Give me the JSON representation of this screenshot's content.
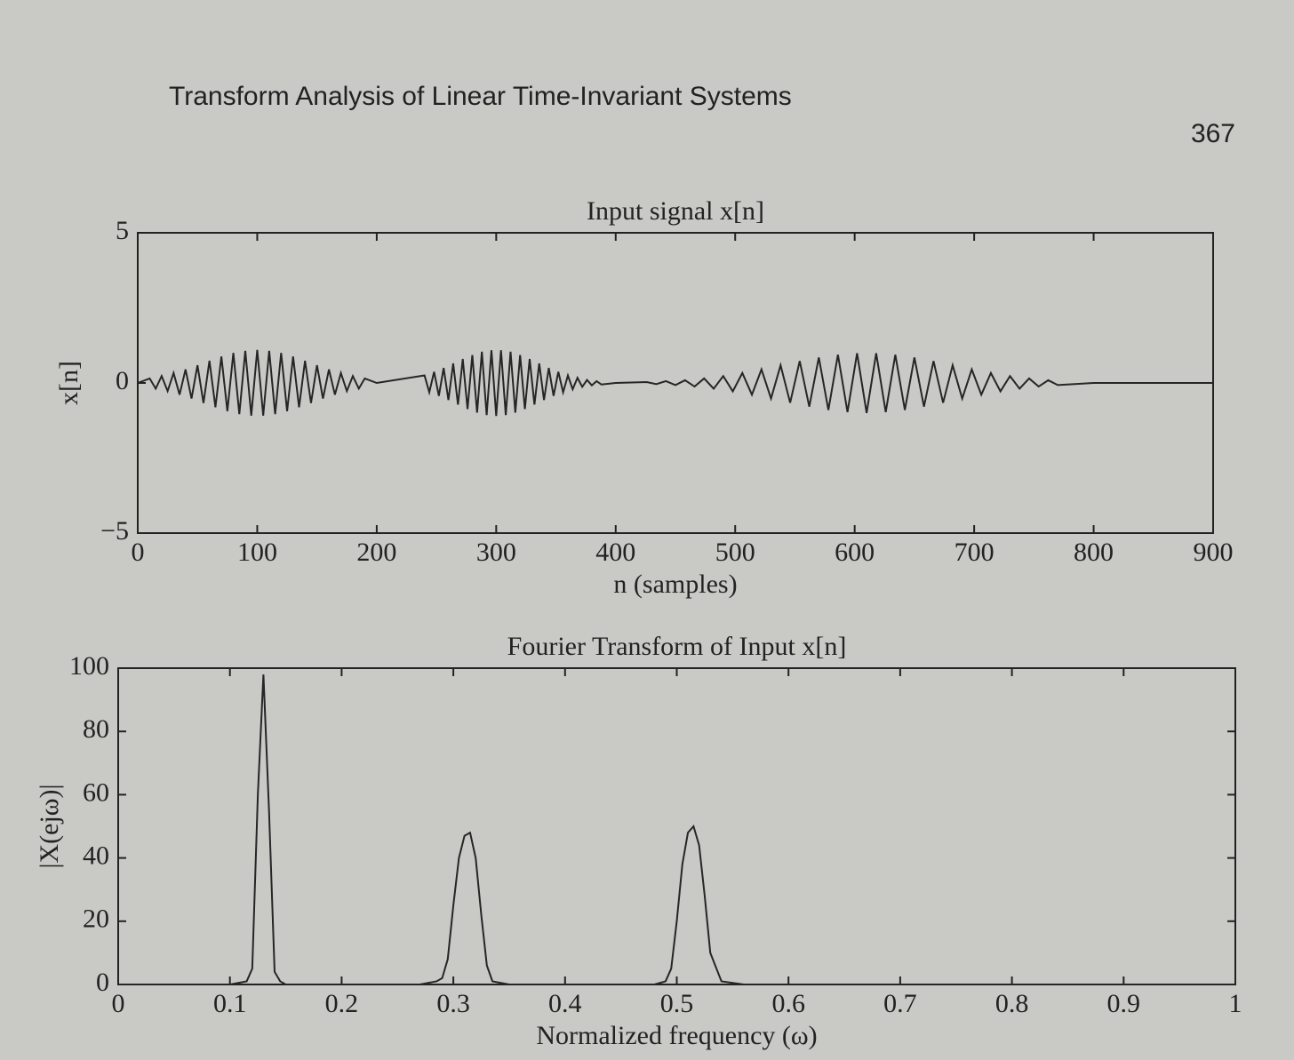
{
  "page": {
    "header": "Transform Analysis of Linear Time-Invariant Systems",
    "number": "367"
  },
  "chart_data": [
    {
      "type": "line",
      "title": "Input signal x[n]",
      "xlabel": "n (samples)",
      "ylabel": "x[n]",
      "color": "#262626",
      "grid": false,
      "xlim": [
        0,
        900
      ],
      "xticks": [
        0,
        100,
        200,
        300,
        400,
        500,
        600,
        700,
        800,
        900
      ],
      "ylim": [
        -5,
        5
      ],
      "yticks": [
        {
          "value": -5,
          "label": "−5"
        },
        0,
        5
      ],
      "x": [
        0,
        10,
        15,
        20,
        25,
        30,
        35,
        40,
        45,
        50,
        55,
        60,
        65,
        70,
        75,
        80,
        85,
        90,
        95,
        100,
        105,
        110,
        115,
        120,
        125,
        130,
        135,
        140,
        145,
        150,
        155,
        160,
        165,
        170,
        175,
        180,
        185,
        190,
        200,
        240,
        244,
        248,
        252,
        256,
        260,
        264,
        268,
        272,
        276,
        280,
        284,
        288,
        292,
        296,
        300,
        304,
        308,
        312,
        316,
        320,
        324,
        328,
        332,
        336,
        340,
        344,
        348,
        352,
        356,
        360,
        364,
        368,
        372,
        376,
        380,
        384,
        388,
        400,
        426,
        434,
        442,
        450,
        458,
        466,
        474,
        482,
        490,
        498,
        506,
        514,
        522,
        530,
        538,
        546,
        554,
        562,
        570,
        578,
        586,
        594,
        602,
        610,
        618,
        626,
        634,
        642,
        650,
        658,
        666,
        674,
        682,
        690,
        698,
        706,
        714,
        722,
        730,
        738,
        746,
        754,
        762,
        770,
        800,
        900
      ],
      "values": [
        0,
        0.15,
        -0.19,
        0.23,
        -0.27,
        0.33,
        -0.39,
        0.45,
        -0.52,
        0.59,
        -0.67,
        0.74,
        -0.81,
        0.88,
        -0.94,
        1.0,
        -1.04,
        1.07,
        -1.09,
        1.1,
        -1.09,
        1.07,
        -1.04,
        1.0,
        -0.94,
        0.88,
        -0.81,
        0.74,
        -0.67,
        0.59,
        -0.52,
        0.45,
        -0.39,
        0.33,
        -0.27,
        0.23,
        -0.19,
        0.15,
        0,
        0.25,
        -0.31,
        0.37,
        -0.43,
        0.5,
        -0.57,
        0.65,
        -0.72,
        0.8,
        -0.87,
        0.93,
        -0.99,
        1.04,
        -1.07,
        1.09,
        -1.1,
        1.09,
        -1.07,
        1.04,
        -0.99,
        0.93,
        -0.87,
        0.8,
        -0.72,
        0.65,
        -0.57,
        0.5,
        -0.43,
        0.37,
        -0.31,
        0.25,
        -0.21,
        0.17,
        -0.13,
        0.1,
        -0.08,
        0.06,
        -0.05,
        0,
        0.03,
        -0.04,
        0.06,
        -0.07,
        0.09,
        -0.12,
        0.15,
        -0.19,
        0.23,
        -0.28,
        0.33,
        -0.39,
        0.45,
        -0.52,
        0.59,
        -0.66,
        0.73,
        -0.79,
        0.85,
        -0.9,
        0.94,
        -0.97,
        0.99,
        -1.0,
        0.99,
        -0.97,
        0.94,
        -0.9,
        0.85,
        -0.79,
        0.73,
        -0.66,
        0.59,
        -0.52,
        0.45,
        -0.39,
        0.33,
        -0.28,
        0.23,
        -0.19,
        0.15,
        -0.12,
        0.09,
        -0.07,
        0,
        0
      ]
    },
    {
      "type": "line",
      "title": "Fourier Transform of Input x[n]",
      "xlabel": "Normalized frequency (ω)",
      "ylabel": "|X(ejω)|",
      "color": "#262626",
      "grid": false,
      "xlim": [
        0,
        1
      ],
      "xticks": [
        0,
        0.1,
        0.2,
        0.3,
        0.4,
        0.5,
        0.6,
        0.7,
        0.8,
        0.9,
        1
      ],
      "ylim": [
        0,
        100
      ],
      "yticks": [
        0,
        20,
        40,
        60,
        80,
        100
      ],
      "x": [
        0,
        0.1,
        0.115,
        0.12,
        0.125,
        0.13,
        0.135,
        0.14,
        0.145,
        0.15,
        0.27,
        0.285,
        0.29,
        0.295,
        0.3,
        0.305,
        0.31,
        0.315,
        0.32,
        0.325,
        0.33,
        0.335,
        0.35,
        0.48,
        0.49,
        0.495,
        0.5,
        0.505,
        0.51,
        0.515,
        0.52,
        0.525,
        0.53,
        0.54,
        0.56,
        1
      ],
      "values": [
        0,
        0,
        1,
        5,
        60,
        98,
        55,
        4,
        1,
        0,
        0,
        1,
        2,
        8,
        25,
        40,
        47,
        48,
        40,
        22,
        6,
        1,
        0,
        0,
        1,
        5,
        20,
        38,
        48,
        50,
        44,
        28,
        10,
        1,
        0,
        0
      ]
    }
  ]
}
